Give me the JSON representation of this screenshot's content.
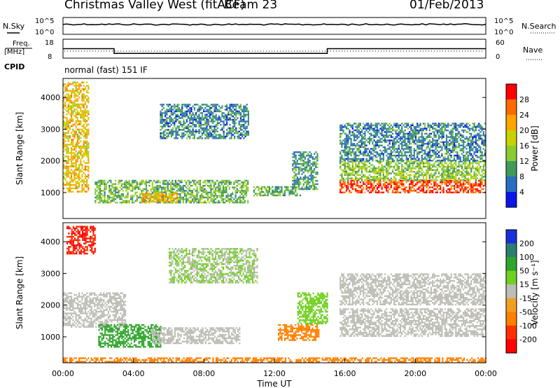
{
  "header": {
    "station": "Christmas Valley West (fitACF)",
    "beam": "Beam 23",
    "date": "01/Feb/2013"
  },
  "panels": {
    "nsky_label": "N.Sky",
    "nsky_ticks": [
      "10^5",
      "10^0"
    ],
    "nsearch_label": "N.Search",
    "nsearch_ticks": [
      "10^5",
      "10^0"
    ],
    "freq_label": "Freq.",
    "freq_unit": "[MHz]",
    "freq_ticks": [
      "18",
      "8"
    ],
    "nave_label": "Nave",
    "nave_ticks": [
      "60",
      "0"
    ],
    "cpid_label": "CPID",
    "cpid_value": "normal (fast) 151 IF"
  },
  "power_colorbar": {
    "label": "Power [dB]",
    "ticks": [
      "28",
      "24",
      "20",
      "16",
      "12",
      "8",
      "4"
    ],
    "colors": [
      "#ff0000",
      "#ff6a00",
      "#ffa500",
      "#c8d200",
      "#8acb32",
      "#3f9a5c",
      "#2a6ec2",
      "#0a16e8"
    ]
  },
  "velocity_colorbar": {
    "label": "Velocity [m s⁻¹]",
    "ticks": [
      "200",
      "100",
      "50",
      "15",
      "-15",
      "-50",
      "-100",
      "-200"
    ],
    "colors": [
      "#1a2fd8",
      "#2c7e6e",
      "#2fa52c",
      "#70d020",
      "#bdbdb5",
      "#f0a020",
      "#ff8000",
      "#ff3000",
      "#ff0000"
    ]
  },
  "chart_data": [
    {
      "type": "line",
      "name": "N.Sky",
      "x": [
        "00:00",
        "04:00",
        "08:00",
        "12:00",
        "16:00",
        "20:00",
        "00:00"
      ],
      "values": [
        10000,
        9000,
        8000,
        8000,
        8000,
        9000,
        10000
      ]
    },
    {
      "type": "line",
      "name": "Freq.",
      "x": [
        0,
        2.9,
        2.9,
        15.0,
        15.0,
        24
      ],
      "values": [
        13,
        13,
        10.5,
        10.5,
        13,
        13
      ]
    },
    {
      "type": "heatmap",
      "name": "Power",
      "xlabel": "Time UT",
      "ylabel": "Slant Range [km]",
      "xlim": [
        0,
        24
      ],
      "ylim": [
        180,
        4600
      ],
      "yticks": [
        "4000",
        "3000",
        "2000",
        "1000"
      ],
      "regions": [
        {
          "t": [
            0.0,
            1.4
          ],
          "r": [
            1000,
            4500
          ],
          "power": 18
        },
        {
          "t": [
            1.8,
            10.5
          ],
          "r": [
            700,
            1400
          ],
          "power": 10
        },
        {
          "t": [
            4.5,
            6.5
          ],
          "r": [
            700,
            1000
          ],
          "power": 20
        },
        {
          "t": [
            5.5,
            10.5
          ],
          "r": [
            2700,
            3800
          ],
          "power": 6
        },
        {
          "t": [
            10.8,
            13.5
          ],
          "r": [
            900,
            1200
          ],
          "power": 10
        },
        {
          "t": [
            13.0,
            14.4
          ],
          "r": [
            1100,
            2300
          ],
          "power": 8
        },
        {
          "t": [
            15.7,
            24.0
          ],
          "r": [
            1000,
            1400
          ],
          "power": 26
        },
        {
          "t": [
            15.7,
            24.0
          ],
          "r": [
            1400,
            2000
          ],
          "power": 12
        },
        {
          "t": [
            15.7,
            24.0
          ],
          "r": [
            2000,
            3200
          ],
          "power": 6
        }
      ]
    },
    {
      "type": "heatmap",
      "name": "Velocity",
      "xlabel": "Time UT",
      "ylabel": "Slant Range [km]",
      "xlim": [
        0,
        24
      ],
      "ylim": [
        180,
        4600
      ],
      "xticks": [
        "00:00",
        "04:00",
        "08:00",
        "12:00",
        "16:00",
        "20:00",
        "00:00"
      ],
      "yticks": [
        "4000",
        "3000",
        "2000",
        "1000"
      ],
      "regions": [
        {
          "t": [
            0.2,
            1.8
          ],
          "r": [
            3600,
            4500
          ],
          "velocity": -200
        },
        {
          "t": [
            0.0,
            3.5
          ],
          "r": [
            1300,
            2400
          ],
          "velocity": 0
        },
        {
          "t": [
            2.0,
            5.5
          ],
          "r": [
            700,
            1400
          ],
          "velocity": 60
        },
        {
          "t": [
            5.0,
            10.0
          ],
          "r": [
            800,
            1300
          ],
          "velocity": 0
        },
        {
          "t": [
            6.0,
            11.0
          ],
          "r": [
            2700,
            3800
          ],
          "velocity": 15
        },
        {
          "t": [
            12.2,
            14.5
          ],
          "r": [
            900,
            1400
          ],
          "velocity": -60
        },
        {
          "t": [
            13.3,
            15.0
          ],
          "r": [
            1400,
            2400
          ],
          "velocity": 40
        },
        {
          "t": [
            15.7,
            24.0
          ],
          "r": [
            1000,
            1900
          ],
          "velocity": 0
        },
        {
          "t": [
            15.7,
            24.0
          ],
          "r": [
            2000,
            3000
          ],
          "velocity": 0
        },
        {
          "t": [
            0.0,
            24.0
          ],
          "r": [
            200,
            350
          ],
          "velocity": -60
        }
      ]
    }
  ]
}
